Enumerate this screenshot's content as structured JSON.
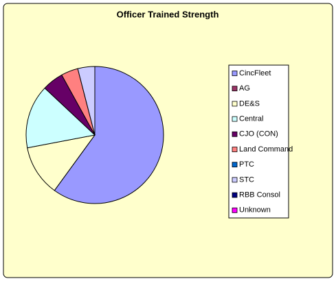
{
  "chart_data": {
    "type": "pie",
    "title": "Officer Trained Strength",
    "categories": [
      "CincFleet",
      "AG",
      "DE&S",
      "Central",
      "CJO (CON)",
      "Land Command",
      "PTC",
      "STC",
      "RBB Consol",
      "Unknown"
    ],
    "values": [
      60,
      0,
      12,
      15,
      5,
      4,
      0,
      4,
      0,
      0
    ],
    "colors": [
      "#9999ff",
      "#993366",
      "#ffffcc",
      "#ccffff",
      "#660066",
      "#ff8080",
      "#0066cc",
      "#ccccff",
      "#000080",
      "#ff00ff"
    ],
    "legend": "right"
  }
}
